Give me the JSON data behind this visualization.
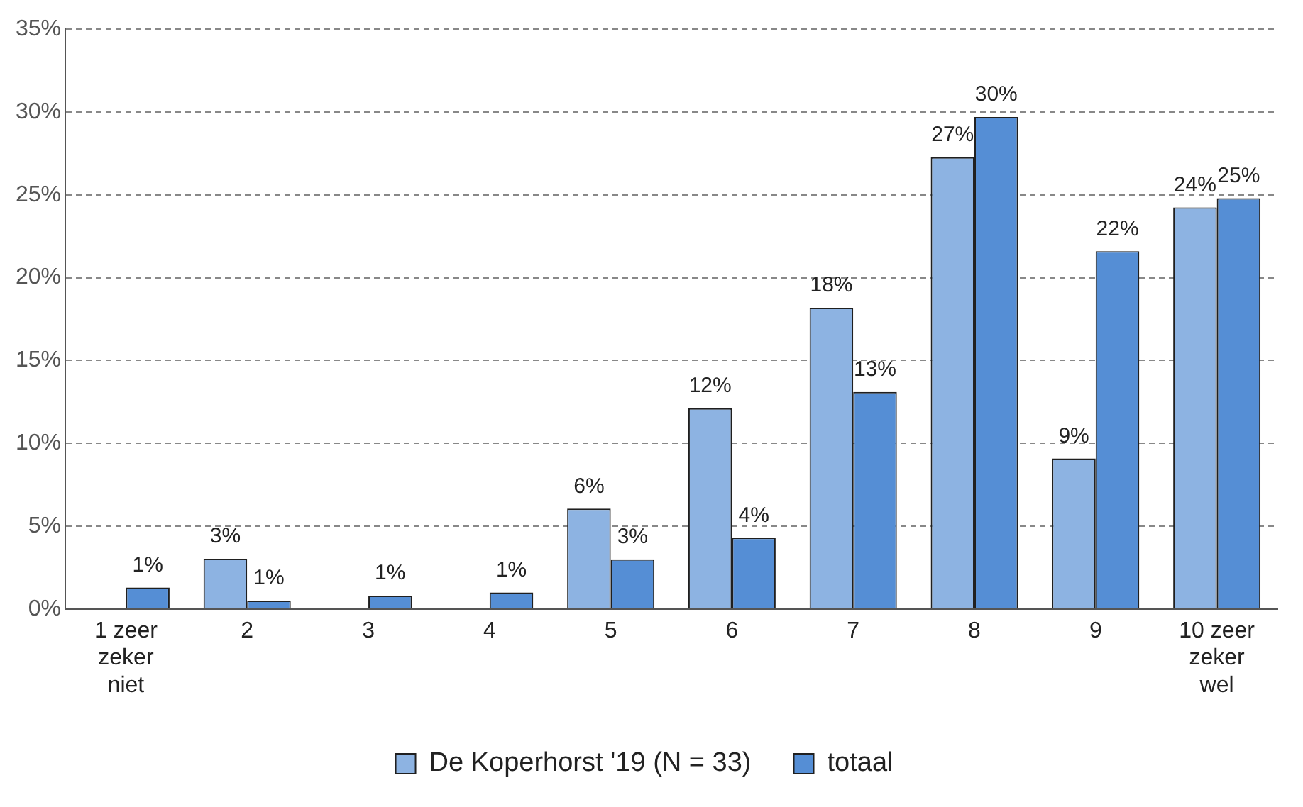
{
  "chart_data": {
    "type": "bar",
    "categories": [
      "1 zeer zeker niet",
      "2",
      "3",
      "4",
      "5",
      "6",
      "7",
      "8",
      "9",
      "10 zeer zeker wel"
    ],
    "series": [
      {
        "name": "De Koperhorst '19 (N = 33)",
        "color": "#8db3e2",
        "values": [
          null,
          3.03,
          null,
          null,
          6.06,
          12.12,
          18.18,
          27.27,
          9.09,
          24.24
        ],
        "value_labels": [
          null,
          "3%",
          null,
          null,
          "6%",
          "12%",
          "18%",
          "27%",
          "9%",
          "24%"
        ]
      },
      {
        "name": "totaal",
        "color": "#558ed5",
        "values": [
          1.3,
          0.5,
          0.8,
          1.0,
          3.0,
          4.3,
          13.1,
          29.7,
          21.6,
          24.8
        ],
        "value_labels": [
          "1%",
          "1%",
          "1%",
          "1%",
          "3%",
          "4%",
          "13%",
          "30%",
          "22%",
          "25%"
        ]
      }
    ],
    "ylim": [
      0,
      35
    ],
    "yticks": [
      {
        "value": 0,
        "label": "0%"
      },
      {
        "value": 5,
        "label": "5%"
      },
      {
        "value": 10,
        "label": "10%"
      },
      {
        "value": 15,
        "label": "15%"
      },
      {
        "value": 20,
        "label": "20%"
      },
      {
        "value": 25,
        "label": "25%"
      },
      {
        "value": 30,
        "label": "30%"
      },
      {
        "value": 35,
        "label": "35%"
      }
    ],
    "grid": "y",
    "legend": "bottom"
  }
}
